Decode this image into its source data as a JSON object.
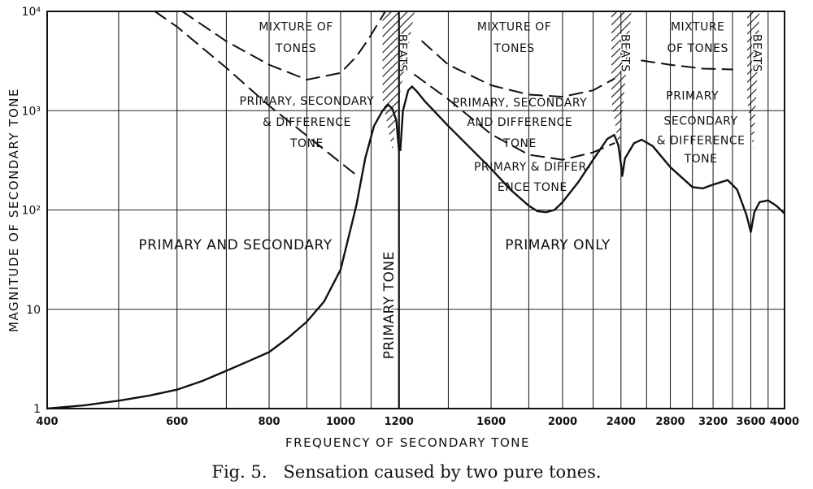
{
  "chart_data": {
    "type": "line",
    "title": "",
    "caption": "Fig. 5.   Sensation caused by two pure tones.",
    "xlabel": "FREQUENCY OF SECONDARY TONE",
    "ylabel": "MAGNITUDE OF SECONDARY TONE",
    "x_scale": "log",
    "y_scale": "log",
    "xlim": [
      400,
      4000
    ],
    "ylim": [
      1,
      10000
    ],
    "grid": true,
    "x_ticks": [
      {
        "value": 400,
        "label": "400"
      },
      {
        "value": 600,
        "label": "600"
      },
      {
        "value": 800,
        "label": "800"
      },
      {
        "value": 1000,
        "label": "1000"
      },
      {
        "value": 1200,
        "label": "1200"
      },
      {
        "value": 1600,
        "label": "1600"
      },
      {
        "value": 2000,
        "label": "2000"
      },
      {
        "value": 2400,
        "label": "2400"
      },
      {
        "value": 2800,
        "label": "2800"
      },
      {
        "value": 3200,
        "label": "3200"
      },
      {
        "value": 3600,
        "label": "3600"
      },
      {
        "value": 4000,
        "label": "4000"
      }
    ],
    "x_gridlines": [
      400,
      500,
      600,
      700,
      800,
      900,
      1000,
      1100,
      1200,
      1400,
      1600,
      1800,
      2000,
      2200,
      2400,
      2600,
      2800,
      3000,
      3200,
      3400,
      3600,
      3800,
      4000
    ],
    "y_ticks": [
      {
        "value": 1,
        "label": "1"
      },
      {
        "value": 10,
        "label": "10"
      },
      {
        "value": 100,
        "label": "10²"
      },
      {
        "value": 1000,
        "label": "10³"
      },
      {
        "value": 10000,
        "label": "10⁴"
      }
    ],
    "series": [
      {
        "name": "",
        "style": "solid",
        "points": [
          [
            400,
            1
          ],
          [
            450,
            1.08
          ],
          [
            500,
            1.2
          ],
          [
            550,
            1.35
          ],
          [
            600,
            1.55
          ],
          [
            650,
            1.9
          ],
          [
            700,
            2.4
          ],
          [
            750,
            3.0
          ],
          [
            800,
            3.7
          ],
          [
            850,
            5.2
          ],
          [
            900,
            7.5
          ],
          [
            950,
            12
          ],
          [
            1000,
            25
          ],
          [
            1050,
            110
          ],
          [
            1080,
            330
          ],
          [
            1110,
            700
          ],
          [
            1140,
            1000
          ],
          [
            1160,
            1150
          ],
          [
            1175,
            1050
          ],
          [
            1190,
            800
          ],
          [
            1200,
            400
          ],
          [
            1205,
            400
          ],
          [
            1215,
            1000
          ],
          [
            1235,
            1600
          ],
          [
            1250,
            1750
          ],
          [
            1270,
            1550
          ],
          [
            1300,
            1250
          ],
          [
            1400,
            700
          ],
          [
            1500,
            420
          ],
          [
            1600,
            260
          ],
          [
            1700,
            160
          ],
          [
            1800,
            110
          ],
          [
            1850,
            97
          ],
          [
            1900,
            95
          ],
          [
            1950,
            100
          ],
          [
            2000,
            120
          ],
          [
            2100,
            190
          ],
          [
            2200,
            320
          ],
          [
            2300,
            520
          ],
          [
            2350,
            570
          ],
          [
            2380,
            450
          ],
          [
            2400,
            290
          ],
          [
            2410,
            220
          ],
          [
            2430,
            330
          ],
          [
            2500,
            470
          ],
          [
            2560,
            510
          ],
          [
            2650,
            440
          ],
          [
            2800,
            270
          ],
          [
            3000,
            170
          ],
          [
            3100,
            165
          ],
          [
            3200,
            180
          ],
          [
            3350,
            200
          ],
          [
            3450,
            160
          ],
          [
            3550,
            90
          ],
          [
            3600,
            60
          ],
          [
            3640,
            95
          ],
          [
            3700,
            120
          ],
          [
            3800,
            125
          ],
          [
            3900,
            110
          ],
          [
            4000,
            92
          ]
        ]
      },
      {
        "name": "",
        "style": "dashed",
        "points": [
          [
            610,
            10000
          ],
          [
            700,
            5000
          ],
          [
            800,
            2900
          ],
          [
            900,
            2050
          ],
          [
            1000,
            2400
          ],
          [
            1050,
            3500
          ],
          [
            1090,
            5200
          ],
          [
            1150,
            10000
          ]
        ]
      },
      {
        "name": "",
        "style": "dashed",
        "points": [
          [
            560,
            10000
          ],
          [
            600,
            7000
          ],
          [
            700,
            2700
          ],
          [
            800,
            1120
          ],
          [
            900,
            560
          ],
          [
            1000,
            300
          ],
          [
            1050,
            225
          ]
        ]
      },
      {
        "name": "",
        "style": "dashed",
        "points": [
          [
            1290,
            5000
          ],
          [
            1400,
            2900
          ],
          [
            1600,
            1800
          ],
          [
            1800,
            1450
          ],
          [
            2000,
            1380
          ],
          [
            2200,
            1600
          ],
          [
            2350,
            2100
          ]
        ]
      },
      {
        "name": "",
        "style": "dashed",
        "points": [
          [
            1260,
            2300
          ],
          [
            1400,
            1300
          ],
          [
            1600,
            580
          ],
          [
            1800,
            360
          ],
          [
            2000,
            320
          ],
          [
            2200,
            380
          ],
          [
            2350,
            470
          ]
        ]
      },
      {
        "name": "",
        "style": "dashed",
        "points": [
          [
            2560,
            3200
          ],
          [
            2800,
            2900
          ],
          [
            3100,
            2650
          ],
          [
            3400,
            2600
          ]
        ]
      }
    ],
    "beat_bands": [
      {
        "label": "BEATS",
        "x_from": 1140,
        "x_to": 1200,
        "x_to_top": 1260
      },
      {
        "label": "BEATS",
        "x_from": 2330,
        "x_to": 2420,
        "x_to_top": 2480
      },
      {
        "label": "BEATS",
        "x_from": 3560,
        "x_to": 3660,
        "x_to_top": 3700
      }
    ],
    "annotations": [
      {
        "id": "mix1a",
        "text": "MIXTURE OF",
        "x": 870,
        "y": 6400,
        "size": "normal"
      },
      {
        "id": "mix1b",
        "text": "TONES",
        "x": 870,
        "y": 3900,
        "size": "normal"
      },
      {
        "id": "psd1a",
        "text": "PRIMARY, SECONDARY",
        "x": 900,
        "y": 1150,
        "size": "normal"
      },
      {
        "id": "psd1b",
        "text": "& DIFFERENCE",
        "x": 900,
        "y": 700,
        "size": "normal"
      },
      {
        "id": "psd1c",
        "text": "TONE",
        "x": 900,
        "y": 430,
        "size": "normal"
      },
      {
        "id": "mix2a",
        "text": "MIXTURE OF",
        "x": 1720,
        "y": 6400,
        "size": "normal"
      },
      {
        "id": "mix2b",
        "text": "TONES",
        "x": 1720,
        "y": 3900,
        "size": "normal"
      },
      {
        "id": "psd2a",
        "text": "PRIMARY, SECONDARY",
        "x": 1750,
        "y": 1100,
        "size": "normal"
      },
      {
        "id": "psd2b",
        "text": "AND DIFFERENCE",
        "x": 1750,
        "y": 700,
        "size": "normal"
      },
      {
        "id": "psd2c",
        "text": "TONE",
        "x": 1750,
        "y": 430,
        "size": "normal"
      },
      {
        "id": "pdt_a",
        "text": "PRIMARY & DIFFER-",
        "x": 1820,
        "y": 250,
        "size": "normal"
      },
      {
        "id": "pdt_b",
        "text": "ENCE TONE",
        "x": 1820,
        "y": 155,
        "size": "normal"
      },
      {
        "id": "mix3a",
        "text": "MIXTURE",
        "x": 3050,
        "y": 6400,
        "size": "normal"
      },
      {
        "id": "mix3b",
        "text": "OF TONES",
        "x": 3050,
        "y": 3900,
        "size": "normal"
      },
      {
        "id": "psd3a",
        "text": "PRIMARY",
        "x": 3000,
        "y": 1300,
        "size": "normal"
      },
      {
        "id": "psd3b",
        "text": "SECONDARY",
        "x": 3080,
        "y": 720,
        "size": "normal"
      },
      {
        "id": "psd3c",
        "text": "& DIFFERENCE",
        "x": 3080,
        "y": 460,
        "size": "normal"
      },
      {
        "id": "psd3d",
        "text": "TONE",
        "x": 3080,
        "y": 300,
        "size": "normal"
      },
      {
        "id": "ps",
        "text": "PRIMARY AND SECONDARY",
        "x": 720,
        "y": 40,
        "size": "big"
      },
      {
        "id": "po",
        "text": "PRIMARY ONLY",
        "x": 1970,
        "y": 40,
        "size": "big"
      },
      {
        "id": "pt",
        "text": "PRIMARY TONE",
        "x": 1180,
        "y": 11,
        "size": "big",
        "rotate": -90
      }
    ]
  }
}
